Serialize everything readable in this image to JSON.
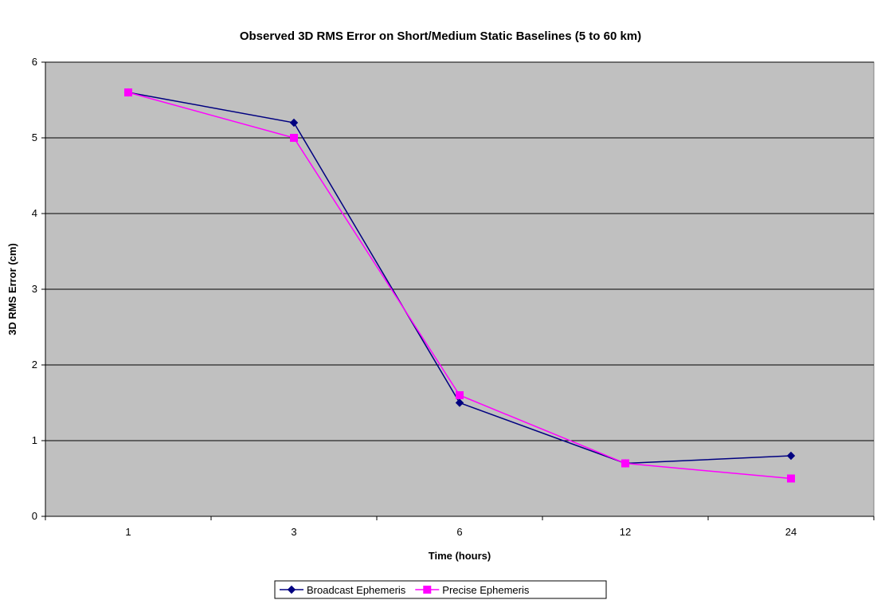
{
  "chart_data": {
    "type": "line",
    "title": "Observed 3D RMS Error on Short/Medium Static Baselines (5 to 60 km)",
    "xlabel": "Time (hours)",
    "ylabel": "3D RMS Error (cm)",
    "categories": [
      "1",
      "3",
      "6",
      "12",
      "24"
    ],
    "ylim": [
      0,
      6
    ],
    "yticks": [
      "0",
      "1",
      "2",
      "3",
      "4",
      "5",
      "6"
    ],
    "grid": "horizontal",
    "legend_position": "bottom",
    "plot_background": "#C0C0C0",
    "series": [
      {
        "name": "Broadcast Ephemeris",
        "values": [
          5.6,
          5.2,
          1.5,
          0.7,
          0.8
        ],
        "color": "#000080",
        "marker": "diamond"
      },
      {
        "name": "Precise Ephemeris",
        "values": [
          5.6,
          5.0,
          1.6,
          0.7,
          0.5
        ],
        "color": "#FF00FF",
        "marker": "square"
      }
    ]
  }
}
